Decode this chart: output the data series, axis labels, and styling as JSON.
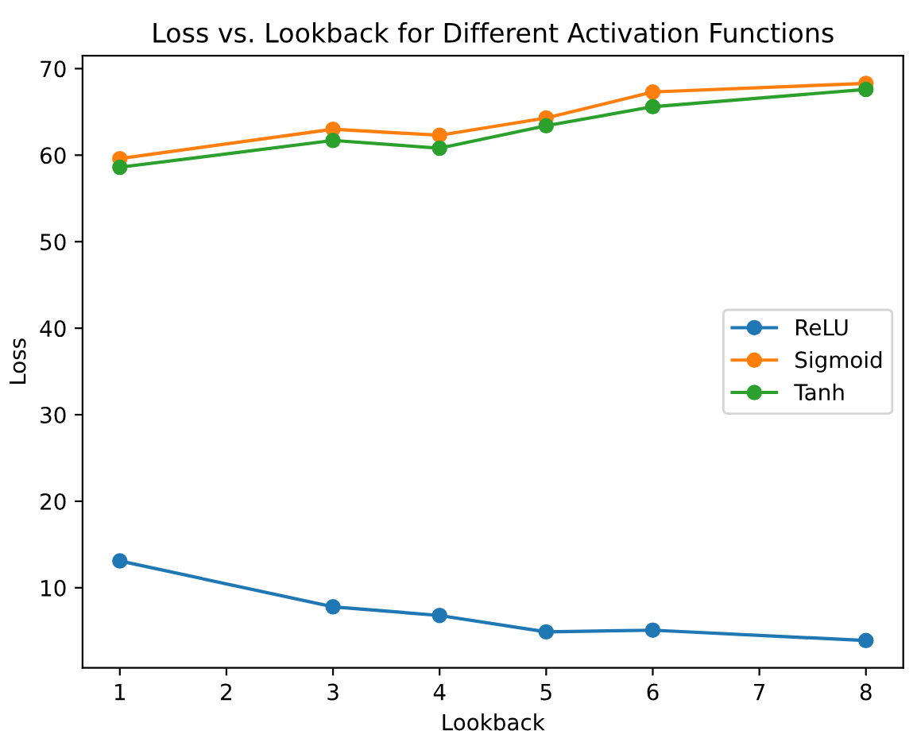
{
  "chart_data": {
    "type": "line",
    "title": "Loss vs. Lookback for Different Activation Functions",
    "xlabel": "Lookback",
    "ylabel": "Loss",
    "x": [
      1,
      3,
      4,
      5,
      6,
      8
    ],
    "series": [
      {
        "name": "ReLU",
        "color": "#1f77b4",
        "values": [
          13.1,
          7.8,
          6.8,
          4.9,
          5.1,
          3.9
        ]
      },
      {
        "name": "Sigmoid",
        "color": "#ff7f0e",
        "values": [
          59.6,
          63.0,
          62.3,
          64.3,
          67.3,
          68.3
        ]
      },
      {
        "name": "Tanh",
        "color": "#2ca02c",
        "values": [
          58.6,
          61.7,
          60.8,
          63.4,
          65.6,
          67.6
        ]
      }
    ],
    "xlim": [
      0.65,
      8.35
    ],
    "ylim": [
      0.75,
      71.5
    ],
    "xticks": [
      1,
      2,
      3,
      4,
      5,
      6,
      7,
      8
    ],
    "yticks": [
      10,
      20,
      30,
      40,
      50,
      60,
      70
    ],
    "marker": "circle",
    "line_style": "solid",
    "legend": "right",
    "grid": false
  }
}
